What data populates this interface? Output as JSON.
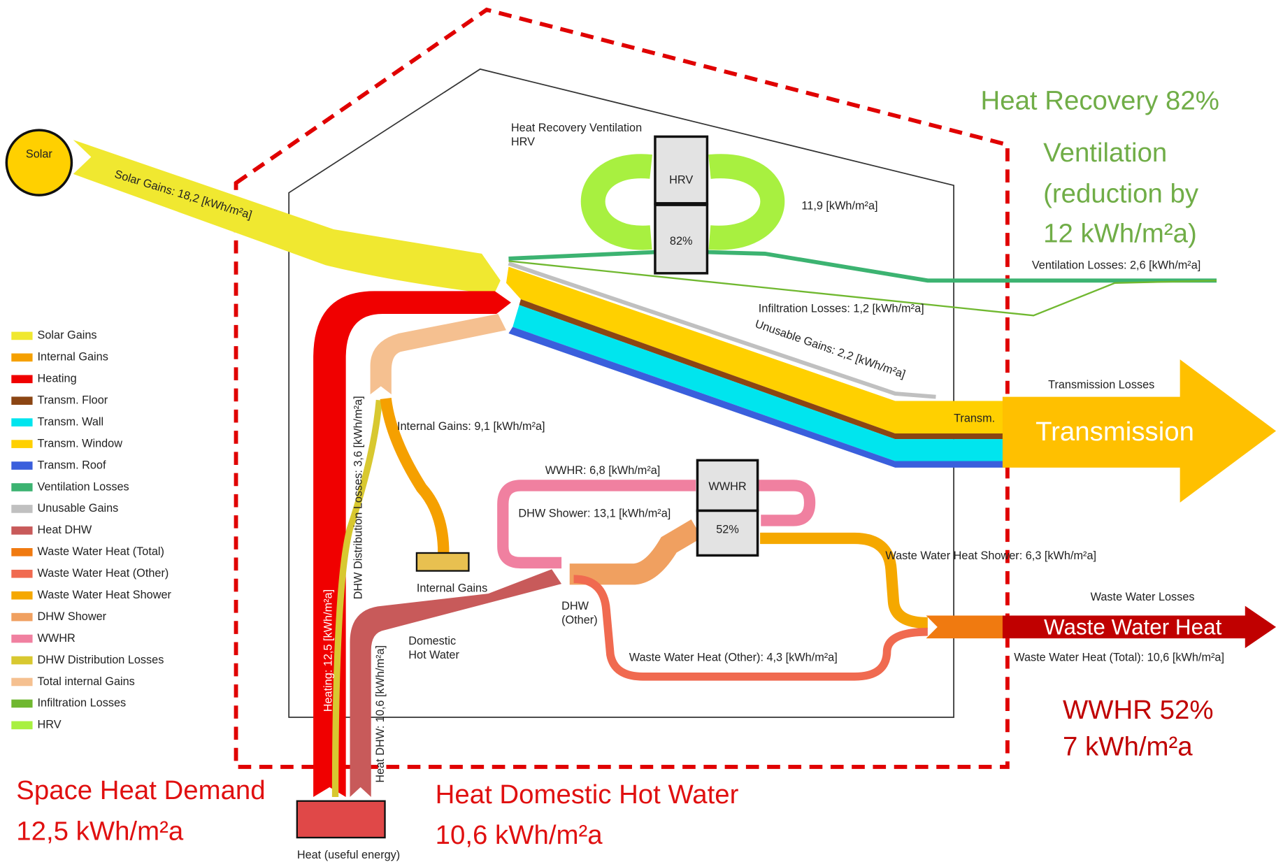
{
  "nodes": {
    "solar": "Solar",
    "hrv_title": [
      "Heat Recovery Ventilation",
      "HRV"
    ],
    "hrv": "HRV",
    "hrv_efficiency": "82%",
    "wwhr": "WWHR",
    "wwhr_efficiency": "52%",
    "internal_gains": "Internal Gains",
    "domestic_hot_water": [
      "Domestic",
      "Hot Water"
    ],
    "dhw_other": [
      "DHW",
      "(Other)"
    ],
    "heat": "Heat (useful energy)"
  },
  "flow_labels": {
    "solar_gains": "Solar Gains: 18,2 [kWh/m²a]",
    "hrv": "11,9 [kWh/m²a]",
    "ventilation_losses": "Ventilation Losses: 2,6 [kWh/m²a]",
    "infiltration_losses": "Infiltration Losses: 1,2 [kWh/m²a]",
    "unusable_gains": "Unusable Gains: 2,2 [kWh/m²a]",
    "transmission_losses": "Transmission Losses",
    "transm": "Transm.",
    "internal_gains": "Internal Gains: 9,1 [kWh/m²a]",
    "dhw_distribution_losses": "DHW Distribution Losses: 3,6 [kWh/m²a]",
    "heating": "Heating: 12,5 [kWh/m²a]",
    "heat_dhw": "Heat DHW: 10,6 [kWh/m²a]",
    "wwhr": "WWHR: 6,8 [kWh/m²a]",
    "dhw_shower": "DHW Shower: 13,1 [kWh/m²a]",
    "waste_water_heat_shower": "Waste Water Heat Shower: 6,3 [kWh/m²a]",
    "waste_water_losses": "Waste Water Losses",
    "waste_water_heat_total": "Waste Water Heat (Total): 10,6 [kWh/m²a]",
    "waste_water_heat_other": "Waste Water Heat (Other): 4,3 [kWh/m²a]"
  },
  "legend": [
    {
      "label": "Solar Gains",
      "color": "#f0e830"
    },
    {
      "label": "Internal Gains",
      "color": "#f5a000"
    },
    {
      "label": "Heating",
      "color": "#f00000"
    },
    {
      "label": "Transm. Floor",
      "color": "#8b4513"
    },
    {
      "label": "Transm. Wall",
      "color": "#00e5ee"
    },
    {
      "label": "Transm. Window",
      "color": "#ffd000"
    },
    {
      "label": "Transm. Roof",
      "color": "#3a5fdc"
    },
    {
      "label": "Ventilation Losses",
      "color": "#3cb371"
    },
    {
      "label": "Unusable Gains",
      "color": "#c0c0c0"
    },
    {
      "label": "Heat DHW",
      "color": "#c85a5a"
    },
    {
      "label": "Waste Water Heat (Total)",
      "color": "#f07a10"
    },
    {
      "label": "Waste Water Heat (Other)",
      "color": "#f06a50"
    },
    {
      "label": "Waste Water Heat Shower",
      "color": "#f5a800"
    },
    {
      "label": "DHW Shower",
      "color": "#f0a060"
    },
    {
      "label": "WWHR",
      "color": "#f080a0"
    },
    {
      "label": "DHW Distribution Losses",
      "color": "#d8c830"
    },
    {
      "label": "Total internal Gains",
      "color": "#f5c090"
    },
    {
      "label": "Infiltration Losses",
      "color": "#70b830"
    },
    {
      "label": "HRV",
      "color": "#a8f040"
    }
  ],
  "annotations": {
    "transmission": "Transmission",
    "waste_water_heat": "Waste Water Heat",
    "heat_recovery": "Heat Recovery 82%",
    "ventilation": [
      "Ventilation",
      "(reduction by",
      "12 kWh/m²a)"
    ],
    "wwhr": [
      "WWHR 52%",
      "7 kWh/m²a"
    ],
    "space_heat": [
      "Space Heat Demand",
      "12,5 kWh/m²a"
    ],
    "heat_dhw": [
      "Heat Domestic Hot Water",
      "10,6 kWh/m²a"
    ]
  }
}
